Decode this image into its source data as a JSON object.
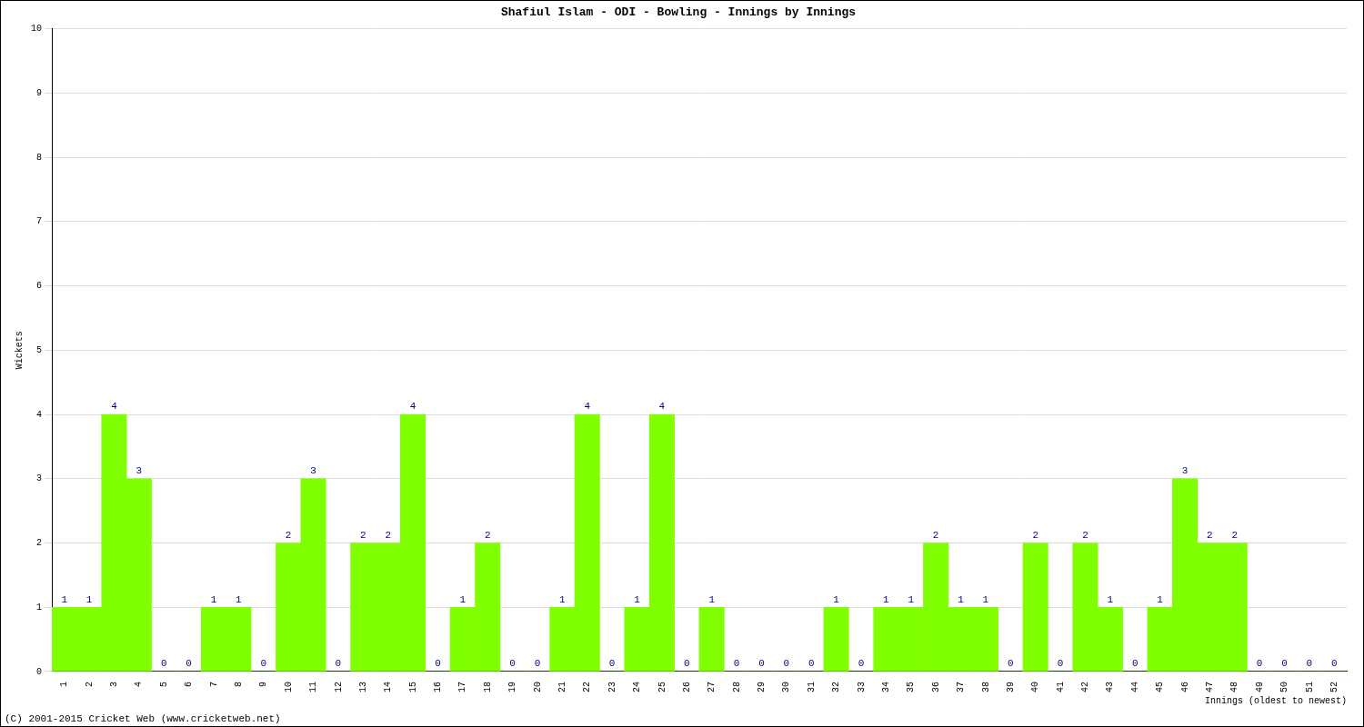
{
  "chart_data": {
    "type": "bar",
    "title": "Shafiul Islam - ODI - Bowling - Innings by Innings",
    "x_label": "Innings (oldest to newest)",
    "y_label": "Wickets",
    "categories": [
      "1",
      "2",
      "3",
      "4",
      "5",
      "6",
      "7",
      "8",
      "9",
      "10",
      "11",
      "12",
      "13",
      "14",
      "15",
      "16",
      "17",
      "18",
      "19",
      "20",
      "21",
      "22",
      "23",
      "24",
      "25",
      "26",
      "27",
      "28",
      "29",
      "30",
      "31",
      "32",
      "33",
      "34",
      "35",
      "36",
      "37",
      "38",
      "39",
      "40",
      "41",
      "42",
      "43",
      "44",
      "45",
      "46",
      "47",
      "48",
      "49",
      "50",
      "51",
      "52"
    ],
    "values": [
      1,
      1,
      4,
      3,
      0,
      0,
      1,
      1,
      0,
      2,
      3,
      0,
      2,
      2,
      4,
      0,
      1,
      2,
      0,
      0,
      1,
      4,
      0,
      1,
      4,
      0,
      1,
      0,
      0,
      0,
      0,
      1,
      0,
      1,
      1,
      2,
      1,
      1,
      0,
      2,
      0,
      2,
      1,
      0,
      1,
      3,
      2,
      2,
      0,
      0,
      0,
      0
    ],
    "color": "#7fff00",
    "ylim": [
      0,
      10
    ],
    "yticks": [
      0,
      1,
      2,
      3,
      4,
      5,
      6,
      7,
      8,
      9,
      10
    ],
    "grid": true,
    "data_labels": true,
    "annotations": [
      "(C) 2001-2015 Cricket Web (www.cricketweb.net)"
    ]
  }
}
